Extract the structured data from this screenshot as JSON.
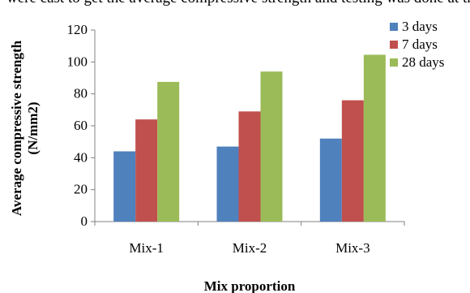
{
  "header_text": "were cast to get the average compressive strength and testing was done at the",
  "chart_data": {
    "type": "bar",
    "title": "",
    "xlabel": "Mix proportion",
    "ylabel": "Average compressive strength (N/mm2)",
    "ylabel_lines": [
      "Average compressive strength",
      "(N/mm2)"
    ],
    "ylim": [
      0,
      120
    ],
    "yticks": [
      0,
      20,
      40,
      60,
      80,
      100,
      120
    ],
    "categories": [
      "Mix-1",
      "Mix-2",
      "Mix-3"
    ],
    "series": [
      {
        "name": "3 days",
        "color": "#4F81BD",
        "values": [
          44,
          47,
          52
        ]
      },
      {
        "name": "7 days",
        "color": "#C0504D",
        "values": [
          64,
          69,
          76
        ]
      },
      {
        "name": "28 days",
        "color": "#9BBB59",
        "values": [
          87.5,
          94,
          104.5
        ]
      }
    ],
    "grid": false,
    "legend_position": "top-right"
  }
}
